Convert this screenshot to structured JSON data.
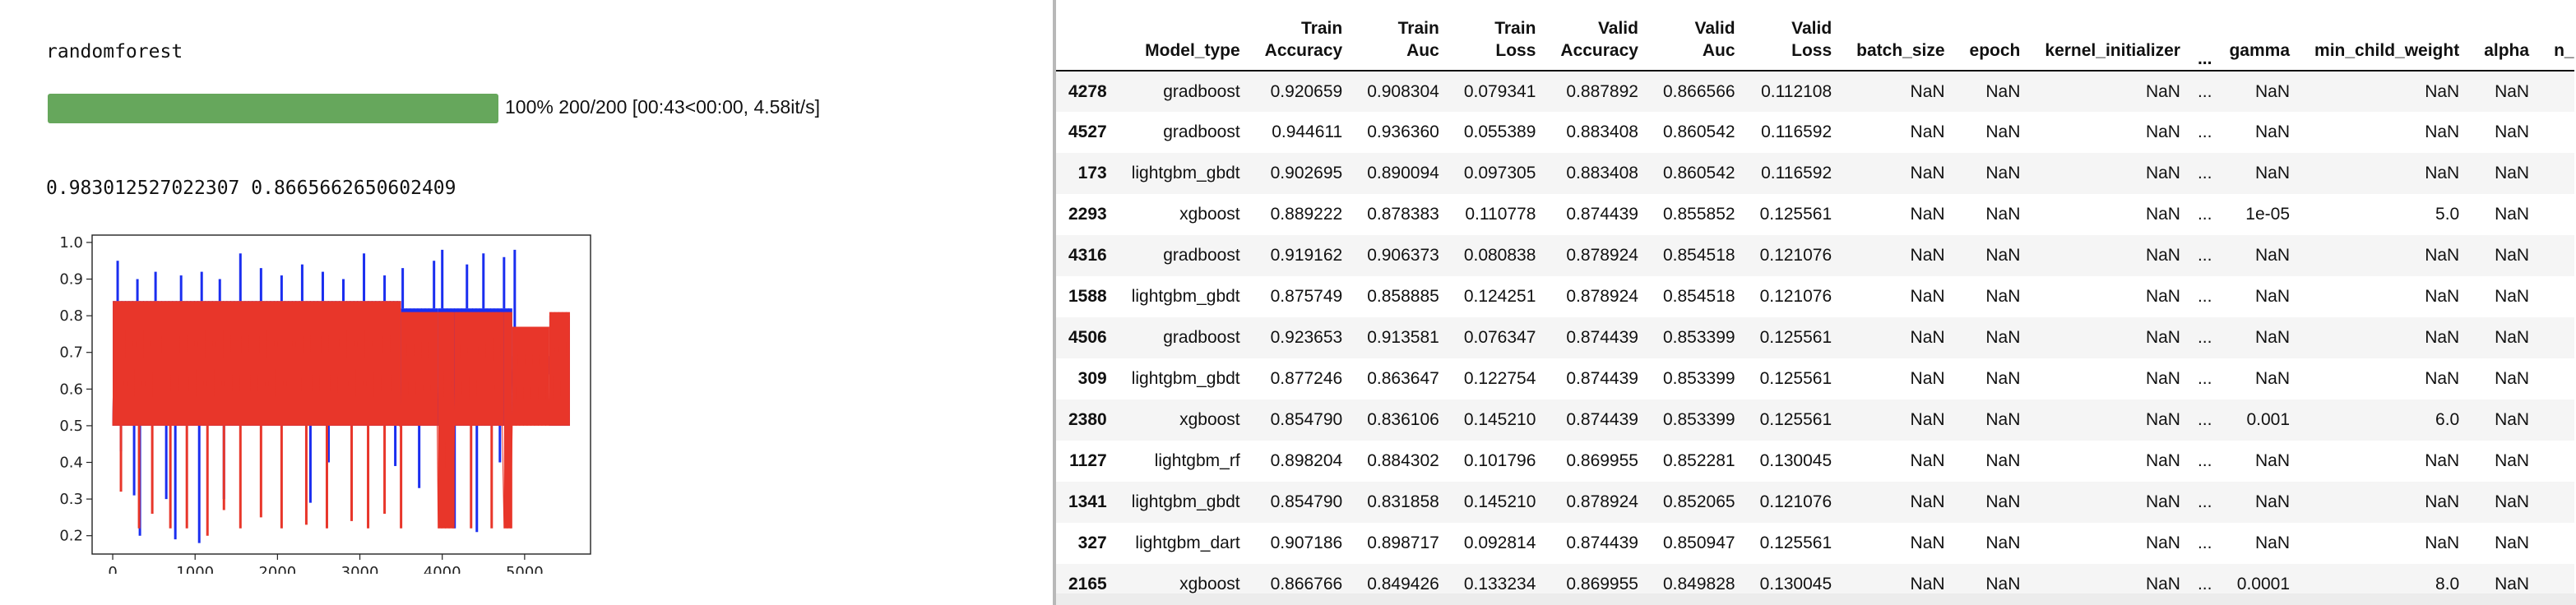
{
  "output": {
    "model_name": "randomforest",
    "progress": {
      "fraction": 1.0,
      "text": "100% 200/200 [00:43<00:00, 4.58it/s]"
    },
    "scores": "0.983012527022307 0.8665662650602409"
  },
  "chart_data": {
    "type": "line",
    "x_range": [
      0,
      5550
    ],
    "xlim": [
      -250,
      5800
    ],
    "ylim": [
      0.15,
      1.02
    ],
    "xticks": [
      "0",
      "1000",
      "2000",
      "3000",
      "4000",
      "5000"
    ],
    "yticks": [
      "0.2",
      "0.3",
      "0.4",
      "0.5",
      "0.6",
      "0.7",
      "0.8",
      "0.9",
      "1.0"
    ],
    "grid": false,
    "series": [
      {
        "color": "#1a2ef0",
        "segments": [
          {
            "x0": 0,
            "x1": 3500,
            "lo": 0.5,
            "hi": 0.84
          },
          {
            "x0": 3500,
            "x1": 3950,
            "lo": 0.5,
            "hi": 0.82
          },
          {
            "x0": 3950,
            "x1": 4850,
            "lo": 0.5,
            "hi": 0.82
          },
          {
            "x0": 4850,
            "x1": 5300,
            "lo": 0.64,
            "hi": 0.69
          },
          {
            "x0": 5300,
            "x1": 5550,
            "lo": 0.5,
            "hi": 0.8
          }
        ],
        "spikes_up": [
          [
            60,
            0.95
          ],
          [
            300,
            0.9
          ],
          [
            520,
            0.92
          ],
          [
            830,
            0.91
          ],
          [
            1080,
            0.92
          ],
          [
            1300,
            0.9
          ],
          [
            1550,
            0.97
          ],
          [
            1800,
            0.93
          ],
          [
            2050,
            0.91
          ],
          [
            2300,
            0.94
          ],
          [
            2550,
            0.92
          ],
          [
            2800,
            0.9
          ],
          [
            3050,
            0.97
          ],
          [
            3300,
            0.91
          ],
          [
            3520,
            0.93
          ],
          [
            3900,
            0.95
          ],
          [
            4000,
            0.98
          ],
          [
            4300,
            0.94
          ],
          [
            4500,
            0.97
          ],
          [
            4750,
            0.96
          ],
          [
            4880,
            0.98
          ]
        ],
        "spikes_down": [
          [
            100,
            0.43
          ],
          [
            260,
            0.31
          ],
          [
            330,
            0.2
          ],
          [
            650,
            0.3
          ],
          [
            760,
            0.19
          ],
          [
            1050,
            0.18
          ],
          [
            1350,
            0.3
          ],
          [
            2400,
            0.29
          ],
          [
            2620,
            0.4
          ],
          [
            3430,
            0.39
          ],
          [
            3720,
            0.33
          ],
          [
            4150,
            0.22
          ],
          [
            4420,
            0.21
          ],
          [
            4700,
            0.4
          ]
        ]
      },
      {
        "color": "#e8362a",
        "segments": [
          {
            "x0": 0,
            "x1": 3500,
            "lo": 0.5,
            "hi": 0.84
          },
          {
            "x0": 3500,
            "x1": 3950,
            "lo": 0.5,
            "hi": 0.81
          },
          {
            "x0": 3950,
            "x1": 4150,
            "lo": 0.22,
            "hi": 0.81
          },
          {
            "x0": 4150,
            "x1": 4750,
            "lo": 0.5,
            "hi": 0.81
          },
          {
            "x0": 4750,
            "x1": 4850,
            "lo": 0.22,
            "hi": 0.81
          },
          {
            "x0": 4850,
            "x1": 5300,
            "lo": 0.5,
            "hi": 0.77
          },
          {
            "x0": 5300,
            "x1": 5550,
            "lo": 0.5,
            "hi": 0.81
          }
        ],
        "spikes_up": [],
        "spikes_down": [
          [
            100,
            0.32
          ],
          [
            320,
            0.22
          ],
          [
            480,
            0.26
          ],
          [
            700,
            0.22
          ],
          [
            900,
            0.22
          ],
          [
            1150,
            0.2
          ],
          [
            1350,
            0.27
          ],
          [
            1550,
            0.22
          ],
          [
            1800,
            0.25
          ],
          [
            2050,
            0.22
          ],
          [
            2350,
            0.23
          ],
          [
            2600,
            0.22
          ],
          [
            2900,
            0.24
          ],
          [
            3100,
            0.22
          ],
          [
            3300,
            0.26
          ],
          [
            3500,
            0.22
          ],
          [
            4100,
            0.22
          ],
          [
            4350,
            0.22
          ],
          [
            4600,
            0.22
          ]
        ]
      }
    ]
  },
  "table": {
    "columns": [
      "",
      "Model_type",
      "Train\nAccuracy",
      "Train\nAuc",
      "Train\nLoss",
      "Valid\nAccuracy",
      "Valid\nAuc",
      "Valid\nLoss",
      "batch_size",
      "epoch",
      "kernel_initializer",
      "...",
      "gamma",
      "min_child_weight",
      "alpha",
      "n_"
    ],
    "rows": [
      [
        "4278",
        "gradboost",
        "0.920659",
        "0.908304",
        "0.079341",
        "0.887892",
        "0.866566",
        "0.112108",
        "NaN",
        "NaN",
        "NaN",
        "...",
        "NaN",
        "NaN",
        "NaN"
      ],
      [
        "4527",
        "gradboost",
        "0.944611",
        "0.936360",
        "0.055389",
        "0.883408",
        "0.860542",
        "0.116592",
        "NaN",
        "NaN",
        "NaN",
        "...",
        "NaN",
        "NaN",
        "NaN"
      ],
      [
        "173",
        "lightgbm_gbdt",
        "0.902695",
        "0.890094",
        "0.097305",
        "0.883408",
        "0.860542",
        "0.116592",
        "NaN",
        "NaN",
        "NaN",
        "...",
        "NaN",
        "NaN",
        "NaN"
      ],
      [
        "2293",
        "xgboost",
        "0.889222",
        "0.878383",
        "0.110778",
        "0.874439",
        "0.855852",
        "0.125561",
        "NaN",
        "NaN",
        "NaN",
        "...",
        "1e-05",
        "5.0",
        "NaN"
      ],
      [
        "4316",
        "gradboost",
        "0.919162",
        "0.906373",
        "0.080838",
        "0.878924",
        "0.854518",
        "0.121076",
        "NaN",
        "NaN",
        "NaN",
        "...",
        "NaN",
        "NaN",
        "NaN"
      ],
      [
        "1588",
        "lightgbm_gbdt",
        "0.875749",
        "0.858885",
        "0.124251",
        "0.878924",
        "0.854518",
        "0.121076",
        "NaN",
        "NaN",
        "NaN",
        "...",
        "NaN",
        "NaN",
        "NaN"
      ],
      [
        "4506",
        "gradboost",
        "0.923653",
        "0.913581",
        "0.076347",
        "0.874439",
        "0.853399",
        "0.125561",
        "NaN",
        "NaN",
        "NaN",
        "...",
        "NaN",
        "NaN",
        "NaN"
      ],
      [
        "309",
        "lightgbm_gbdt",
        "0.877246",
        "0.863647",
        "0.122754",
        "0.874439",
        "0.853399",
        "0.125561",
        "NaN",
        "NaN",
        "NaN",
        "...",
        "NaN",
        "NaN",
        "NaN"
      ],
      [
        "2380",
        "xgboost",
        "0.854790",
        "0.836106",
        "0.145210",
        "0.874439",
        "0.853399",
        "0.125561",
        "NaN",
        "NaN",
        "NaN",
        "...",
        "0.001",
        "6.0",
        "NaN"
      ],
      [
        "1127",
        "lightgbm_rf",
        "0.898204",
        "0.884302",
        "0.101796",
        "0.869955",
        "0.852281",
        "0.130045",
        "NaN",
        "NaN",
        "NaN",
        "...",
        "NaN",
        "NaN",
        "NaN"
      ],
      [
        "1341",
        "lightgbm_gbdt",
        "0.854790",
        "0.831858",
        "0.145210",
        "0.878924",
        "0.852065",
        "0.121076",
        "NaN",
        "NaN",
        "NaN",
        "...",
        "NaN",
        "NaN",
        "NaN"
      ],
      [
        "327",
        "lightgbm_dart",
        "0.907186",
        "0.898717",
        "0.092814",
        "0.874439",
        "0.850947",
        "0.125561",
        "NaN",
        "NaN",
        "NaN",
        "...",
        "NaN",
        "NaN",
        "NaN"
      ],
      [
        "2165",
        "xgboost",
        "0.866766",
        "0.849426",
        "0.133234",
        "0.869955",
        "0.849828",
        "0.130045",
        "NaN",
        "NaN",
        "NaN",
        "...",
        "0.0001",
        "8.0",
        "NaN"
      ]
    ]
  }
}
